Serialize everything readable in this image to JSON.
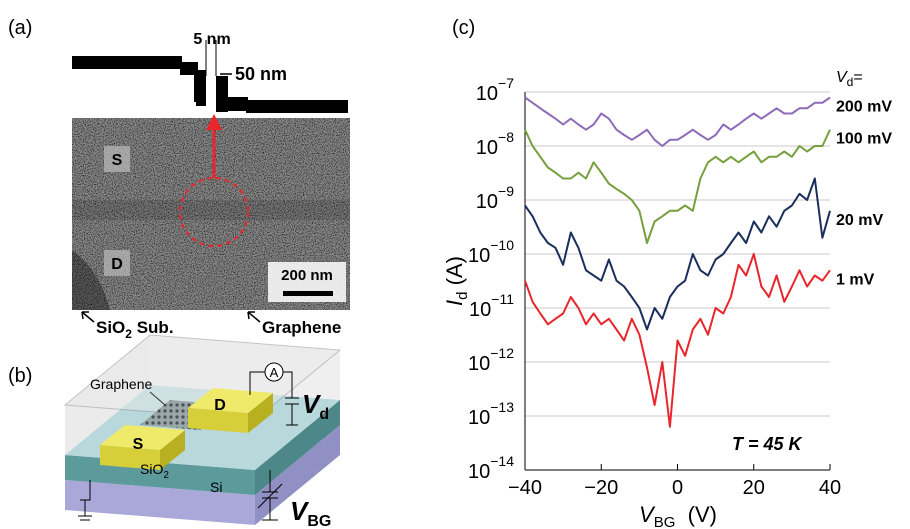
{
  "panel_a": {
    "label": "(a)",
    "gap": "5 nm",
    "width": "50 nm",
    "source": "S",
    "drain": "D",
    "scale": "200 nm",
    "substrate": {
      "main": "SiO",
      "sub": "2",
      "rest": " Sub."
    },
    "graphene": "Graphene"
  },
  "panel_b": {
    "label": "(b)",
    "graphene": "Graphene",
    "drain": "D",
    "source": "S",
    "oxide": {
      "main": "SiO",
      "sub": "2"
    },
    "silicon": "Si",
    "meter": "A",
    "vd": {
      "main": "V",
      "sub": "d"
    },
    "vbg": {
      "main": "V",
      "sub": "BG"
    }
  },
  "chart_data": {
    "type": "line",
    "panel_label": "(c)",
    "log_y": true,
    "grid": true,
    "y_label": {
      "main": "I",
      "sub": "d",
      "unit": " (A)"
    },
    "x_label": {
      "main": "V",
      "sub": "BG",
      "unit": "  (V)"
    },
    "legend_title": {
      "main": "V",
      "sub": "d",
      "rest": "="
    },
    "annotation": "T = 45 K",
    "xlim": [
      -40,
      40
    ],
    "xticks": [
      {
        "value": -40,
        "label": "−40"
      },
      {
        "value": -20,
        "label": "−20"
      },
      0,
      20,
      40
    ],
    "ylim": [
      1e-14,
      1e-07
    ],
    "yticks": [
      {
        "value": 1e-14,
        "label": "10",
        "exponent": "−14"
      },
      {
        "value": 1e-13,
        "label": "10",
        "exponent": "−13"
      },
      {
        "value": 1e-12,
        "label": "10",
        "exponent": "−12"
      },
      {
        "value": 1e-11,
        "label": "10",
        "exponent": "−11"
      },
      {
        "value": 1e-10,
        "label": "10",
        "exponent": "−10"
      },
      {
        "value": 1e-09,
        "label": "10",
        "exponent": "−9"
      },
      {
        "value": 1e-08,
        "label": "10",
        "exponent": "−8"
      },
      {
        "value": 1e-07,
        "label": "10",
        "exponent": "−7"
      }
    ],
    "x": [
      -40,
      -38,
      -36,
      -34,
      -32,
      -30,
      -28,
      -26,
      -24,
      -22,
      -20,
      -18,
      -16,
      -14,
      -12,
      -10,
      -8,
      -6,
      -4,
      -2,
      0,
      2,
      4,
      6,
      8,
      10,
      12,
      14,
      16,
      18,
      20,
      22,
      24,
      26,
      28,
      30,
      32,
      34,
      36,
      38,
      40
    ],
    "series": [
      {
        "name": "200 mV",
        "color": "#8e6bb8",
        "values": [
          7.9e-08,
          6.3e-08,
          5e-08,
          4e-08,
          3.2e-08,
          2.5e-08,
          3.2e-08,
          2.5e-08,
          2e-08,
          2.5e-08,
          4e-08,
          3.2e-08,
          2e-08,
          1.6e-08,
          1.3e-08,
          1.6e-08,
          2e-08,
          1.3e-08,
          1e-08,
          1.3e-08,
          1.3e-08,
          1.6e-08,
          2e-08,
          1.6e-08,
          1.3e-08,
          1.6e-08,
          2.5e-08,
          2e-08,
          2.5e-08,
          3.2e-08,
          4e-08,
          3.2e-08,
          4e-08,
          5e-08,
          4e-08,
          4e-08,
          5e-08,
          5e-08,
          6.3e-08,
          6.3e-08,
          7.9e-08
        ]
      },
      {
        "name": "100 mV",
        "color": "#76a03d",
        "values": [
          2e-08,
          1e-08,
          6.3e-09,
          4e-09,
          3.2e-09,
          2.5e-09,
          2.5e-09,
          3.2e-09,
          2.5e-09,
          5e-09,
          3.2e-09,
          2e-09,
          1.6e-09,
          1.3e-09,
          1e-09,
          6.3e-10,
          1.6e-10,
          4e-10,
          5e-10,
          6.3e-10,
          6.3e-10,
          7.9e-10,
          6.3e-10,
          2.5e-09,
          5e-09,
          6.3e-09,
          5e-09,
          6.3e-09,
          5e-09,
          6.3e-09,
          7.9e-09,
          5e-09,
          6.3e-09,
          6.3e-09,
          7.9e-09,
          6.3e-09,
          1e-08,
          7.9e-09,
          1e-08,
          1e-08,
          2e-08
        ]
      },
      {
        "name": "20 mV",
        "color": "#1b2f5c",
        "values": [
          7.9e-10,
          5e-10,
          2.5e-10,
          1.6e-10,
          1.3e-10,
          6.3e-11,
          2.5e-10,
          1.3e-10,
          5e-11,
          4e-11,
          3.2e-11,
          7.9e-11,
          3.2e-11,
          2.5e-11,
          1.6e-11,
          1e-11,
          4e-12,
          1e-11,
          6.3e-12,
          1.6e-11,
          2.5e-11,
          3.2e-11,
          1e-10,
          5e-11,
          4e-11,
          7.9e-11,
          1e-10,
          1.6e-10,
          2.5e-10,
          1.6e-10,
          4e-10,
          2.5e-10,
          5e-10,
          3.2e-10,
          6.3e-10,
          7.9e-10,
          1.3e-09,
          1e-09,
          2.5e-09,
          2e-10,
          6.3e-10
        ]
      },
      {
        "name": "1 mV",
        "color": "#e8262b",
        "values": [
          3.2e-11,
          1.3e-11,
          7.9e-12,
          5e-12,
          6.3e-12,
          7.9e-12,
          1.6e-11,
          1e-11,
          5e-12,
          7.9e-12,
          5e-12,
          6.3e-12,
          4e-12,
          2.5e-12,
          6.3e-12,
          3.2e-12,
          7.9e-13,
          1.6e-13,
          1e-12,
          6.3e-14,
          2.5e-12,
          1.3e-12,
          4e-12,
          6.3e-12,
          3.2e-12,
          1e-11,
          7.9e-12,
          1.6e-11,
          6.3e-11,
          4e-11,
          1e-10,
          2.5e-11,
          1.6e-11,
          4e-11,
          1.3e-11,
          2.5e-11,
          5e-11,
          2.5e-11,
          4e-11,
          3.2e-11,
          5e-11
        ]
      }
    ]
  }
}
